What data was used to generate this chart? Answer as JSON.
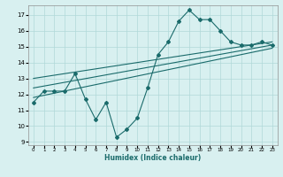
{
  "xlabel": "Humidex (Indice chaleur)",
  "ylabel": "",
  "bg_color": "#d8f0f0",
  "grid_color": "#b0d8d8",
  "line_color": "#1a6b6b",
  "xlim": [
    -0.5,
    23.5
  ],
  "ylim": [
    8.8,
    17.6
  ],
  "yticks": [
    9,
    10,
    11,
    12,
    13,
    14,
    15,
    16,
    17
  ],
  "xticks": [
    0,
    1,
    2,
    3,
    4,
    5,
    6,
    7,
    8,
    9,
    10,
    11,
    12,
    13,
    14,
    15,
    16,
    17,
    18,
    19,
    20,
    21,
    22,
    23
  ],
  "main_series_x": [
    0,
    1,
    2,
    3,
    4,
    5,
    6,
    7,
    8,
    9,
    10,
    11,
    12,
    13,
    14,
    15,
    16,
    17,
    18,
    19,
    20,
    21,
    22,
    23
  ],
  "main_series_y": [
    11.5,
    12.2,
    12.2,
    12.2,
    13.3,
    11.7,
    10.4,
    11.5,
    9.3,
    9.8,
    10.5,
    12.4,
    14.5,
    15.3,
    16.6,
    17.3,
    16.7,
    16.7,
    16.0,
    15.3,
    15.1,
    15.1,
    15.3,
    15.1
  ],
  "line1_x": [
    0,
    23
  ],
  "line1_y": [
    11.8,
    14.9
  ],
  "line2_x": [
    0,
    23
  ],
  "line2_y": [
    12.4,
    15.1
  ],
  "line3_x": [
    0,
    23
  ],
  "line3_y": [
    13.0,
    15.3
  ]
}
